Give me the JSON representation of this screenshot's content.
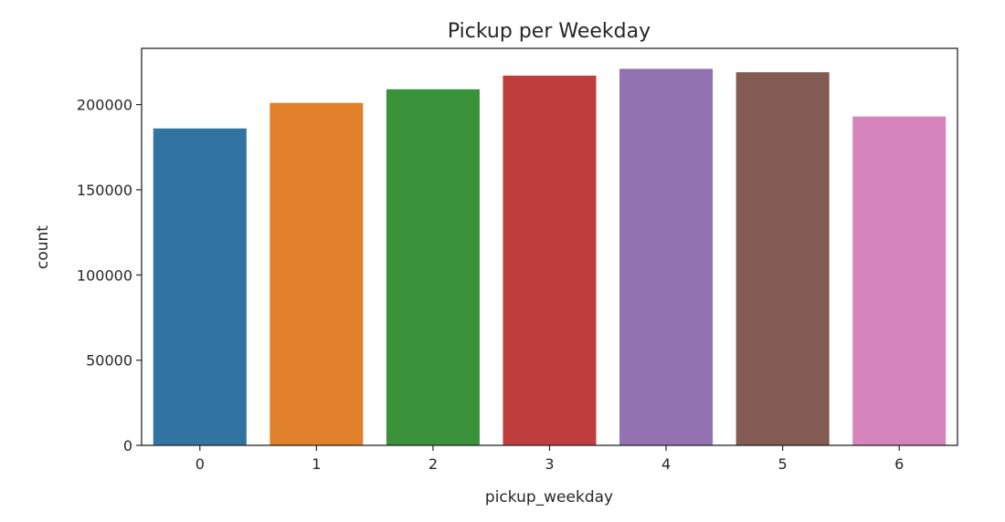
{
  "chart_data": {
    "type": "bar",
    "title": "Pickup per Weekday",
    "xlabel": "pickup_weekday",
    "ylabel": "count",
    "categories": [
      "0",
      "1",
      "2",
      "3",
      "4",
      "5",
      "6"
    ],
    "values": [
      186000,
      201000,
      209000,
      217000,
      221000,
      219000,
      193000
    ],
    "colors": [
      "#3274a1",
      "#e1812c",
      "#3a923a",
      "#c03d3e",
      "#9372b2",
      "#845b53",
      "#d684bd"
    ],
    "ylim": [
      0,
      233000
    ],
    "yticks": [
      0,
      50000,
      100000,
      150000,
      200000
    ],
    "ytick_labels": [
      "0",
      "50000",
      "100000",
      "150000",
      "200000"
    ],
    "grid": false,
    "legend": null
  }
}
